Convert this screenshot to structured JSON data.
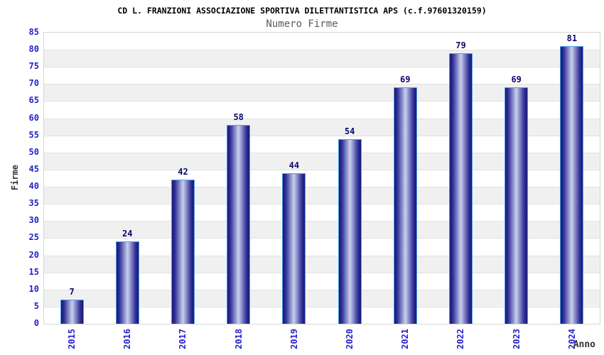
{
  "chart_data": {
    "type": "bar",
    "title": "CD L. FRANZIONI ASSOCIAZIONE SPORTIVA DILETTANTISTICA APS (c.f.97601320159)",
    "subtitle": "Numero Firme",
    "xlabel": "Anno",
    "ylabel": "Firme",
    "categories": [
      "2015",
      "2016",
      "2017",
      "2018",
      "2019",
      "2020",
      "2021",
      "2022",
      "2023",
      "2024"
    ],
    "values": [
      7,
      24,
      42,
      58,
      44,
      54,
      69,
      79,
      69,
      81
    ],
    "ylim": [
      0,
      85
    ],
    "ytick_step": 5,
    "yticks": [
      0,
      5,
      10,
      15,
      20,
      25,
      30,
      35,
      40,
      45,
      50,
      55,
      60,
      65,
      70,
      75,
      80,
      85
    ],
    "grid": "horizontal gridlines every 5 with alternating white/gray bands",
    "legend": "none",
    "value_labels": "above bars",
    "colors": {
      "title": "#000000",
      "subtitle": "#5a5a5a",
      "axis_title": "#333333",
      "tick_label": "#2222cc",
      "value_label": "#0a0a6e",
      "bar_dark": "#181874",
      "bar_mid": "#31319a",
      "bar_light": "#c9d1ec",
      "bar_border": "#4ba0e8",
      "plot_border": "#d6d6d6",
      "band_gray": "#f0f0f0",
      "gridline": "#e2e2e2",
      "background": "#ffffff"
    }
  }
}
